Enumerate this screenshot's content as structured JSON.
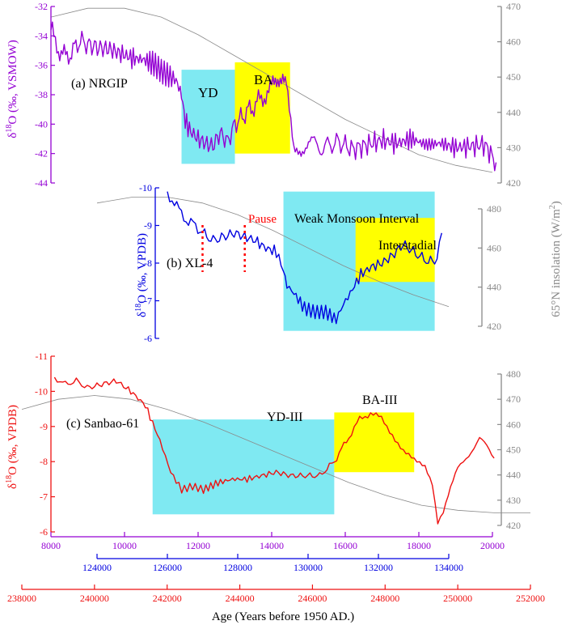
{
  "colors": {
    "nrgip": "#9400d3",
    "xl4": "#0000e0",
    "sanbao": "#ee1111",
    "insolation": "#888888",
    "yd_box": "#7fe9f2",
    "ba_box": "#ffff00",
    "pause": "#ff0000",
    "bottom_axis": "#ee1111"
  },
  "chart_data": [
    {
      "id": "nrgip",
      "type": "line",
      "label": "(a) NRGIP",
      "ylabel": "δ18O (‰, VSMOW)",
      "ylabel_parts": [
        "δ",
        "18",
        "O (‰, VSMOW)"
      ],
      "y_axis": {
        "lim": [
          -44,
          -32
        ],
        "ticks": [
          "-32",
          "-34",
          "-36",
          "-38",
          "-40",
          "-42",
          "-44"
        ],
        "tick_values": [
          -32,
          -34,
          -36,
          -38,
          -40,
          -42,
          -44
        ]
      },
      "x_axis": {
        "lim": [
          8000,
          20000
        ],
        "ticks": [
          "8000",
          "10000",
          "12000",
          "14000",
          "16000",
          "18000",
          "20000"
        ],
        "tick_values": [
          8000,
          10000,
          12000,
          14000,
          16000,
          18000,
          20000
        ]
      },
      "right_axis": {
        "lim": [
          420,
          470
        ],
        "ticks": [
          "420",
          "430",
          "440",
          "450",
          "460",
          "470"
        ],
        "tick_values": [
          420,
          430,
          440,
          450,
          460,
          470
        ]
      },
      "series": [
        {
          "role": "isotope",
          "x": [
            8000,
            8200,
            8400,
            8600,
            8800,
            9000,
            9300,
            9600,
            9900,
            10200,
            10500,
            10800,
            11000,
            11200,
            11400,
            11550,
            11650,
            11800,
            12000,
            12200,
            12400,
            12600,
            12800,
            13000,
            13200,
            13400,
            13600,
            13800,
            14000,
            14100,
            14200,
            14300,
            14400,
            14600,
            14800,
            15000,
            15400,
            15800,
            16200,
            16600,
            17000,
            17400,
            17800,
            18200,
            18600,
            19000,
            19400,
            19800,
            20100
          ],
          "y": [
            -33.6,
            -34.8,
            -35.5,
            -35.0,
            -34.3,
            -34.6,
            -34.8,
            -34.9,
            -35.2,
            -35.5,
            -35.6,
            -35.9,
            -36.4,
            -36.7,
            -37.0,
            -38.0,
            -39.8,
            -40.5,
            -41.0,
            -41.3,
            -41.5,
            -40.6,
            -41.2,
            -40.0,
            -39.5,
            -39.0,
            -38.6,
            -38.0,
            -37.6,
            -37.3,
            -36.8,
            -36.3,
            -36.6,
            -41.2,
            -41.5,
            -41.3,
            -41.6,
            -41.2,
            -41.7,
            -41.4,
            -41.1,
            -41.3,
            -41.0,
            -41.4,
            -41.3,
            -41.6,
            -41.5,
            -41.4,
            -42.6
          ]
        },
        {
          "role": "insolation",
          "x": [
            8000,
            9000,
            10000,
            11000,
            12000,
            13000,
            14000,
            15000,
            16000,
            17000,
            18000,
            19000,
            20000
          ],
          "y": [
            467,
            469.5,
            469.5,
            467,
            462,
            456,
            450,
            444,
            438,
            433,
            428,
            425,
            423
          ]
        }
      ],
      "boxes": [
        {
          "label": "YD",
          "x": [
            11550,
            13000
          ],
          "y": [
            -42.7,
            -36.3
          ],
          "color": "cyan"
        },
        {
          "label": "BA",
          "x": [
            13000,
            14500
          ],
          "y": [
            -42.0,
            -35.8
          ],
          "color": "yellow"
        }
      ]
    },
    {
      "id": "xl4",
      "type": "line",
      "label": "(b) XL-4",
      "ylabel": "δ18O (‰, VPDB)",
      "ylabel_parts": [
        "δ",
        "18",
        "O (‰, VPDB)"
      ],
      "y_axis": {
        "lim": [
          -10,
          -6
        ],
        "ticks": [
          "-10",
          "-9",
          "-8",
          "-7",
          "-6"
        ],
        "tick_values": [
          -10,
          -9,
          -8,
          -7,
          -6
        ]
      },
      "x_axis": {
        "lim": [
          124000,
          134000
        ],
        "ticks": [
          "124000",
          "126000",
          "128000",
          "130000",
          "132000",
          "134000"
        ],
        "tick_values": [
          124000,
          126000,
          128000,
          130000,
          132000,
          134000
        ]
      },
      "right_axis": {
        "lim": [
          420,
          480
        ],
        "ticks": [
          "420",
          "440",
          "460",
          "480"
        ],
        "tick_values": [
          420,
          440,
          460,
          480
        ]
      },
      "series": [
        {
          "role": "isotope",
          "x": [
            126000,
            126200,
            126400,
            126600,
            126800,
            127000,
            127300,
            127600,
            127900,
            128200,
            128500,
            128800,
            129100,
            129300,
            129400,
            129600,
            129900,
            130200,
            130500,
            130800,
            131000,
            131200,
            131500,
            131800,
            132100,
            132400,
            132700,
            133000,
            133300,
            133600,
            133800
          ],
          "y": [
            -9.9,
            -9.6,
            -9.3,
            -9.1,
            -9.0,
            -8.8,
            -8.6,
            -8.7,
            -8.8,
            -8.7,
            -8.6,
            -8.4,
            -8.3,
            -7.8,
            -7.4,
            -7.2,
            -6.8,
            -6.7,
            -6.7,
            -6.5,
            -6.9,
            -7.2,
            -7.7,
            -7.9,
            -8.0,
            -8.2,
            -8.5,
            -8.3,
            -8.1,
            -8.0,
            -8.8
          ]
        },
        {
          "role": "insolation",
          "x": [
            124000,
            125000,
            126000,
            127000,
            128000,
            129000,
            130000,
            131000,
            132000,
            133000,
            134000
          ],
          "y": [
            483,
            486,
            486,
            483,
            477,
            469,
            460,
            451,
            443,
            436,
            430
          ]
        }
      ],
      "annotations": [
        {
          "text": "Pause",
          "color": "red"
        },
        {
          "text": "Weak Monsoon Interval",
          "color": "black"
        },
        {
          "text": "Interstadial",
          "color": "black"
        }
      ],
      "pause_lines_x": [
        127000,
        128200
      ],
      "boxes": [
        {
          "label": "Weak Monsoon Interval",
          "x": [
            129300,
            133600
          ],
          "y": [
            -6.2,
            -9.9
          ],
          "color": "cyan"
        },
        {
          "label": "Interstadial",
          "x": [
            131350,
            133600
          ],
          "y": [
            -7.5,
            -9.2
          ],
          "color": "yellow"
        }
      ]
    },
    {
      "id": "sanbao",
      "type": "line",
      "label": "(c) Sanbao-61",
      "ylabel": "δ18O (‰, VPDB)",
      "ylabel_parts": [
        "δ",
        "18",
        "O (‰, VPDB)"
      ],
      "y_axis": {
        "lim": [
          -11,
          -6
        ],
        "ticks": [
          "-11",
          "-10",
          "-9",
          "-8",
          "-7",
          "-6"
        ],
        "tick_values": [
          -11,
          -10,
          -9,
          -8,
          -7,
          -6
        ]
      },
      "x_axis": {
        "lim": [
          238000,
          252000
        ],
        "ticks": [
          "238000",
          "240000",
          "242000",
          "244000",
          "246000",
          "248000",
          "250000",
          "252000"
        ],
        "tick_values": [
          238000,
          240000,
          242000,
          244000,
          246000,
          248000,
          250000,
          252000
        ]
      },
      "xlabel": "Age (Years before 1950 AD.)",
      "right_axis": {
        "lim": [
          420,
          480
        ],
        "ticks": [
          "420",
          "430",
          "440",
          "450",
          "460",
          "470",
          "480"
        ],
        "tick_values": [
          420,
          430,
          440,
          450,
          460,
          470,
          480
        ]
      },
      "series": [
        {
          "role": "isotope",
          "x": [
            238900,
            239200,
            239500,
            239800,
            240200,
            240600,
            241000,
            241400,
            241800,
            242100,
            242400,
            242700,
            243000,
            243400,
            243800,
            244200,
            244600,
            245000,
            245400,
            245800,
            246200,
            246600,
            247000,
            247300,
            247600,
            247900,
            248200,
            248500,
            248800,
            249100,
            249300,
            249450,
            249600,
            249800,
            250000,
            250300,
            250600,
            250800,
            251000
          ],
          "y": [
            -10.4,
            -10.2,
            -10.3,
            -10.1,
            -10.2,
            -10.3,
            -10.0,
            -9.6,
            -8.6,
            -7.7,
            -7.2,
            -7.3,
            -7.2,
            -7.4,
            -7.5,
            -7.5,
            -7.6,
            -7.7,
            -7.6,
            -7.6,
            -7.6,
            -8.0,
            -8.7,
            -9.2,
            -9.4,
            -9.2,
            -8.8,
            -8.3,
            -8.0,
            -7.8,
            -7.3,
            -6.2,
            -6.5,
            -7.2,
            -7.8,
            -8.2,
            -8.7,
            -8.4,
            -8.1
          ]
        },
        {
          "role": "insolation",
          "x": [
            238000,
            239000,
            240000,
            241000,
            242000,
            243000,
            244000,
            245000,
            246000,
            247000,
            248000,
            249000,
            250000,
            251000,
            252000
          ],
          "y": [
            466,
            470,
            471.5,
            470,
            466,
            461,
            455,
            449,
            443,
            437,
            432,
            428,
            426,
            425,
            425
          ]
        }
      ],
      "boxes": [
        {
          "label": "YD-III",
          "x": [
            241600,
            246600
          ],
          "y": [
            -6.5,
            -9.2
          ],
          "color": "cyan"
        },
        {
          "label": "BA-III",
          "x": [
            246600,
            248800
          ],
          "y": [
            -7.7,
            -9.4
          ],
          "color": "yellow"
        }
      ]
    }
  ],
  "right_axis_label": "65°N insolation (W/m2)",
  "right_axis_label_parts": [
    "65°N insolation (W/m",
    "2",
    ")"
  ]
}
